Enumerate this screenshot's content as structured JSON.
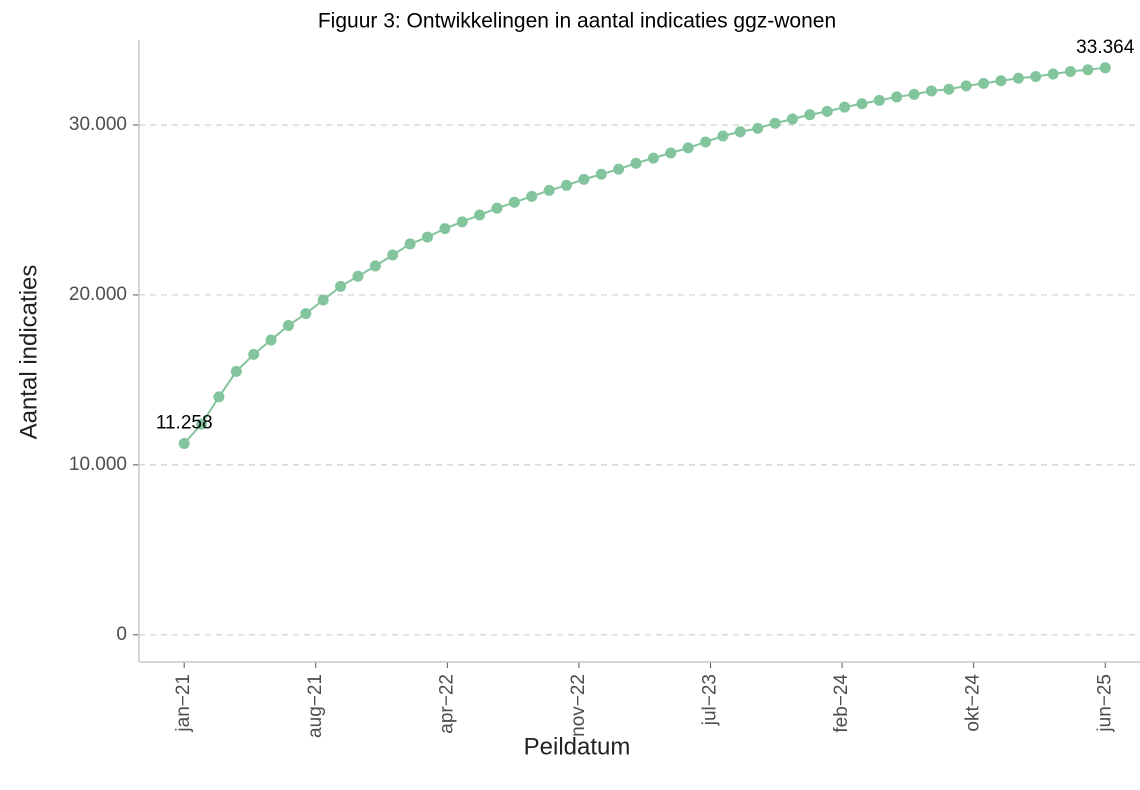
{
  "chart_data": {
    "type": "line",
    "title": "Figuur 3: Ontwikkelingen in aantal indicaties ggz-wonen",
    "x_label": "Peildatum",
    "y_label": "Aantal indicaties",
    "color": "#82c49c",
    "grid": true,
    "x": [
      0,
      1,
      2,
      3,
      4,
      5,
      6,
      7,
      8,
      9,
      10,
      11,
      12,
      13,
      14,
      15,
      16,
      17,
      18,
      19,
      20,
      21,
      22,
      23,
      24,
      25,
      26,
      27,
      28,
      29,
      30,
      31,
      32,
      33,
      34,
      35,
      36,
      37,
      38,
      39,
      40,
      41,
      42,
      43,
      44,
      45,
      46,
      47,
      48,
      49,
      50,
      51,
      52,
      53
    ],
    "values": [
      11258,
      12400,
      14000,
      15500,
      16500,
      17350,
      18200,
      18900,
      19700,
      20500,
      21100,
      21700,
      22350,
      23000,
      23400,
      23900,
      24300,
      24700,
      25100,
      25450,
      25800,
      26150,
      26450,
      26800,
      27100,
      27400,
      27750,
      28050,
      28350,
      28650,
      29000,
      29350,
      29600,
      29800,
      30100,
      30350,
      30600,
      30800,
      31050,
      31250,
      31450,
      31650,
      31800,
      32000,
      32100,
      32300,
      32450,
      32600,
      32750,
      32850,
      33000,
      33150,
      33250,
      33364
    ],
    "value_labels": [
      "11.258",
      null,
      null,
      null,
      null,
      null,
      null,
      null,
      null,
      null,
      null,
      null,
      null,
      null,
      null,
      null,
      null,
      null,
      null,
      null,
      null,
      null,
      null,
      null,
      null,
      null,
      null,
      null,
      null,
      null,
      null,
      null,
      null,
      null,
      null,
      null,
      null,
      null,
      null,
      null,
      null,
      null,
      null,
      null,
      null,
      null,
      null,
      null,
      null,
      null,
      null,
      null,
      null,
      "33.364"
    ],
    "xlim": [
      -2.6,
      55
    ],
    "xticks": [
      {
        "value": 0,
        "label": "jan−21"
      },
      {
        "value": 7.571,
        "label": "aug−21"
      },
      {
        "value": 15.143,
        "label": "apr−22"
      },
      {
        "value": 22.714,
        "label": "nov−22"
      },
      {
        "value": 30.286,
        "label": "jul−23"
      },
      {
        "value": 37.857,
        "label": "feb−24"
      },
      {
        "value": 45.429,
        "label": "okt−24"
      },
      {
        "value": 53,
        "label": "jun−25"
      }
    ],
    "ylim": [
      -1600,
      35000
    ],
    "yticks": [
      0,
      {
        "value": 10000,
        "label": "10.000"
      },
      {
        "value": 20000,
        "label": "20.000"
      },
      {
        "value": 30000,
        "label": "30.000"
      }
    ]
  }
}
